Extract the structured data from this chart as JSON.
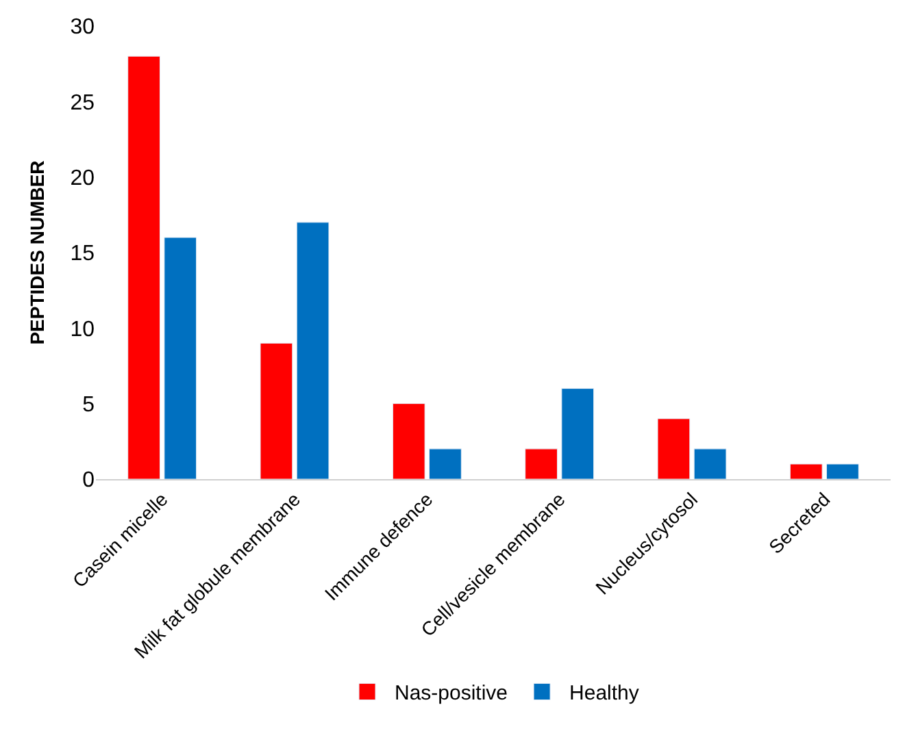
{
  "chart_data": {
    "type": "bar",
    "ylabel": "PEPTIDES NUMBER",
    "categories": [
      "Casein micelle",
      "Milk fat globule membrane",
      "Immune defence",
      "Cell/vesicle membrane",
      "Nucleus/cytosol",
      "Secreted"
    ],
    "series": [
      {
        "name": "Nas-positive",
        "color": "#ff0000",
        "values": [
          28,
          9,
          5,
          2,
          4,
          1
        ]
      },
      {
        "name": "Healthy",
        "color": "#0070c0",
        "values": [
          16,
          17,
          2,
          6,
          2,
          1
        ]
      }
    ],
    "ylim": [
      0,
      30
    ],
    "yticks": [
      0,
      5,
      10,
      15,
      20,
      25,
      30
    ],
    "grid": false,
    "legend": "bottom"
  }
}
